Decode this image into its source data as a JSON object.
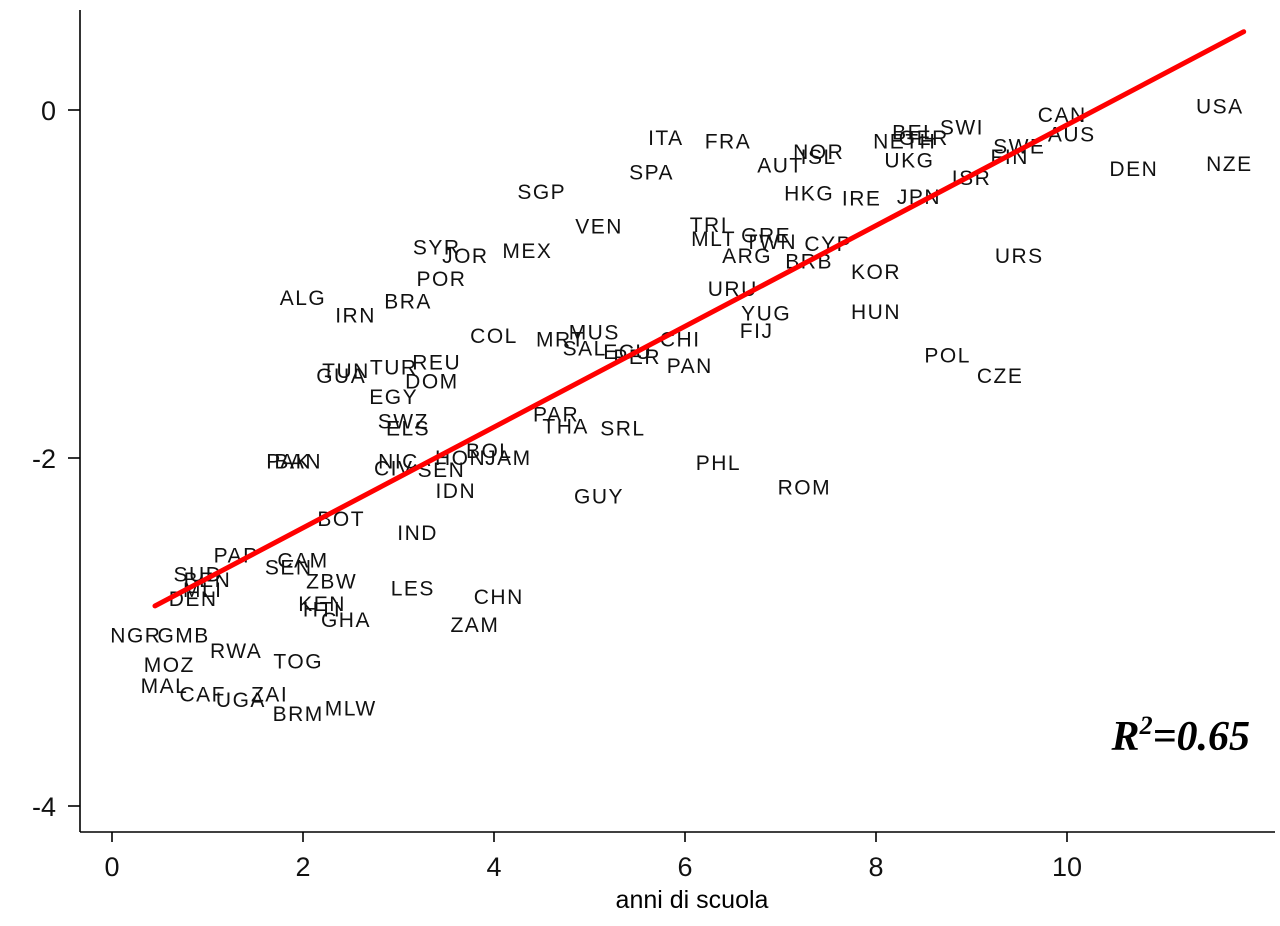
{
  "chart_data": {
    "type": "scatter",
    "xlabel": "anni di scuola",
    "ylabel": "",
    "xlim": [
      -0.3,
      12.0
    ],
    "ylim": [
      -4.15,
      0.6
    ],
    "xticks": [
      0,
      2,
      4,
      6,
      8,
      10
    ],
    "yticks": [
      0,
      -2,
      -4
    ],
    "grid": false,
    "annotation": {
      "r2_base": "R",
      "r2_sup": "2",
      "r2_value": "=0.65"
    },
    "fit_line": {
      "x": [
        0.45,
        11.85
      ],
      "y": [
        -2.85,
        0.45
      ],
      "color": "#ff0000"
    },
    "points": [
      {
        "label": "USA",
        "x": 11.6,
        "y": 0.02
      },
      {
        "label": "NZE",
        "x": 11.7,
        "y": -0.31
      },
      {
        "label": "CAN",
        "x": 9.95,
        "y": -0.03
      },
      {
        "label": "AUS",
        "x": 10.05,
        "y": -0.14
      },
      {
        "label": "DEN",
        "x": 10.7,
        "y": -0.34
      },
      {
        "label": "SWI",
        "x": 8.9,
        "y": -0.1
      },
      {
        "label": "SWE",
        "x": 9.5,
        "y": -0.21
      },
      {
        "label": "FIN",
        "x": 9.4,
        "y": -0.27
      },
      {
        "label": "ISR",
        "x": 9.0,
        "y": -0.39
      },
      {
        "label": "BEL",
        "x": 8.4,
        "y": -0.13
      },
      {
        "label": "NETH",
        "x": 8.3,
        "y": -0.18
      },
      {
        "label": "GER",
        "x": 8.5,
        "y": -0.16
      },
      {
        "label": "UKG",
        "x": 8.35,
        "y": -0.29
      },
      {
        "label": "JPN",
        "x": 8.45,
        "y": -0.5
      },
      {
        "label": "NOR",
        "x": 7.4,
        "y": -0.24
      },
      {
        "label": "ISL",
        "x": 7.4,
        "y": -0.27
      },
      {
        "label": "AUT",
        "x": 7.0,
        "y": -0.32
      },
      {
        "label": "HKG",
        "x": 7.3,
        "y": -0.48
      },
      {
        "label": "IRE",
        "x": 7.85,
        "y": -0.51
      },
      {
        "label": "ITA",
        "x": 5.8,
        "y": -0.16
      },
      {
        "label": "FRA",
        "x": 6.45,
        "y": -0.18
      },
      {
        "label": "SPA",
        "x": 5.65,
        "y": -0.36
      },
      {
        "label": "SGP",
        "x": 4.5,
        "y": -0.47
      },
      {
        "label": "VEN",
        "x": 5.1,
        "y": -0.67
      },
      {
        "label": "TRI",
        "x": 6.25,
        "y": -0.66
      },
      {
        "label": "MLT",
        "x": 6.3,
        "y": -0.74
      },
      {
        "label": "GRE",
        "x": 6.85,
        "y": -0.72
      },
      {
        "label": "TWN",
        "x": 6.9,
        "y": -0.76
      },
      {
        "label": "CYP",
        "x": 7.5,
        "y": -0.77
      },
      {
        "label": "ARG",
        "x": 6.65,
        "y": -0.84
      },
      {
        "label": "BRB",
        "x": 7.3,
        "y": -0.87
      },
      {
        "label": "KOR",
        "x": 8.0,
        "y": -0.93
      },
      {
        "label": "URS",
        "x": 9.5,
        "y": -0.84
      },
      {
        "label": "URU",
        "x": 6.5,
        "y": -1.03
      },
      {
        "label": "YUG",
        "x": 6.85,
        "y": -1.17
      },
      {
        "label": "FIJ",
        "x": 6.75,
        "y": -1.27
      },
      {
        "label": "HUN",
        "x": 8.0,
        "y": -1.16
      },
      {
        "label": "POL",
        "x": 8.75,
        "y": -1.41
      },
      {
        "label": "CZE",
        "x": 9.3,
        "y": -1.53
      },
      {
        "label": "SYR",
        "x": 3.4,
        "y": -0.79
      },
      {
        "label": "JOR",
        "x": 3.7,
        "y": -0.84
      },
      {
        "label": "MEX",
        "x": 4.35,
        "y": -0.81
      },
      {
        "label": "POR",
        "x": 3.45,
        "y": -0.97
      },
      {
        "label": "ALG",
        "x": 2.0,
        "y": -1.08
      },
      {
        "label": "IRN",
        "x": 2.55,
        "y": -1.18
      },
      {
        "label": "BRA",
        "x": 3.1,
        "y": -1.1
      },
      {
        "label": "COL",
        "x": 4.0,
        "y": -1.3
      },
      {
        "label": "MRT",
        "x": 4.7,
        "y": -1.32
      },
      {
        "label": "MUS",
        "x": 5.05,
        "y": -1.28
      },
      {
        "label": "SAL",
        "x": 4.95,
        "y": -1.37
      },
      {
        "label": "PER",
        "x": 5.5,
        "y": -1.42
      },
      {
        "label": "ECU",
        "x": 5.4,
        "y": -1.39
      },
      {
        "label": "CHI",
        "x": 5.95,
        "y": -1.32
      },
      {
        "label": "PAN",
        "x": 6.05,
        "y": -1.47
      },
      {
        "label": "TUN",
        "x": 2.45,
        "y": -1.5
      },
      {
        "label": "GUA",
        "x": 2.4,
        "y": -1.53
      },
      {
        "label": "TUR",
        "x": 2.95,
        "y": -1.48
      },
      {
        "label": "REU",
        "x": 3.4,
        "y": -1.45
      },
      {
        "label": "DOM",
        "x": 3.35,
        "y": -1.56
      },
      {
        "label": "EGY",
        "x": 2.95,
        "y": -1.65
      },
      {
        "label": "SWZ",
        "x": 3.05,
        "y": -1.79
      },
      {
        "label": "ELS",
        "x": 3.1,
        "y": -1.83
      },
      {
        "label": "PAR",
        "x": 4.65,
        "y": -1.75
      },
      {
        "label": "THA",
        "x": 4.75,
        "y": -1.82
      },
      {
        "label": "SRL",
        "x": 5.35,
        "y": -1.83
      },
      {
        "label": "BOL",
        "x": 3.95,
        "y": -1.96
      },
      {
        "label": "HON",
        "x": 3.65,
        "y": -2.0
      },
      {
        "label": "JAM",
        "x": 4.15,
        "y": -2.0
      },
      {
        "label": "NIC",
        "x": 3.0,
        "y": -2.02
      },
      {
        "label": "CIV",
        "x": 2.95,
        "y": -2.06
      },
      {
        "label": "SEN",
        "x": 3.45,
        "y": -2.07
      },
      {
        "label": "PAK",
        "x": 1.85,
        "y": -2.02
      },
      {
        "label": "BAN",
        "x": 1.95,
        "y": -2.02
      },
      {
        "label": "IDN",
        "x": 3.6,
        "y": -2.19
      },
      {
        "label": "PHL",
        "x": 6.35,
        "y": -2.03
      },
      {
        "label": "ROM",
        "x": 7.25,
        "y": -2.17
      },
      {
        "label": "GUY",
        "x": 5.1,
        "y": -2.22
      },
      {
        "label": "BOT",
        "x": 2.4,
        "y": -2.35
      },
      {
        "label": "IND",
        "x": 3.2,
        "y": -2.43
      },
      {
        "label": "PAP",
        "x": 1.3,
        "y": -2.56
      },
      {
        "label": "CAM",
        "x": 2.0,
        "y": -2.59
      },
      {
        "label": "SEN",
        "x": 1.85,
        "y": -2.63
      },
      {
        "label": "SUD",
        "x": 0.9,
        "y": -2.67
      },
      {
        "label": "BEN",
        "x": 1.0,
        "y": -2.7
      },
      {
        "label": "MLI",
        "x": 0.95,
        "y": -2.76
      },
      {
        "label": "DEN",
        "x": 0.85,
        "y": -2.81
      },
      {
        "label": "ZBW",
        "x": 2.3,
        "y": -2.71
      },
      {
        "label": "LES",
        "x": 3.15,
        "y": -2.75
      },
      {
        "label": "CHN",
        "x": 4.05,
        "y": -2.8
      },
      {
        "label": "KEN",
        "x": 2.2,
        "y": -2.84
      },
      {
        "label": "HTI",
        "x": 2.2,
        "y": -2.87
      },
      {
        "label": "GHA",
        "x": 2.45,
        "y": -2.93
      },
      {
        "label": "ZAM",
        "x": 3.8,
        "y": -2.96
      },
      {
        "label": "NGR",
        "x": 0.25,
        "y": -3.02
      },
      {
        "label": "GMB",
        "x": 0.75,
        "y": -3.02
      },
      {
        "label": "RWA",
        "x": 1.3,
        "y": -3.11
      },
      {
        "label": "TOG",
        "x": 1.95,
        "y": -3.17
      },
      {
        "label": "MOZ",
        "x": 0.6,
        "y": -3.19
      },
      {
        "label": "MAL",
        "x": 0.55,
        "y": -3.31
      },
      {
        "label": "CAF",
        "x": 0.95,
        "y": -3.36
      },
      {
        "label": "ZAI",
        "x": 1.65,
        "y": -3.36
      },
      {
        "label": "UGA",
        "x": 1.35,
        "y": -3.39
      },
      {
        "label": "BRM",
        "x": 1.95,
        "y": -3.47
      },
      {
        "label": "MLW",
        "x": 2.5,
        "y": -3.44
      }
    ]
  }
}
